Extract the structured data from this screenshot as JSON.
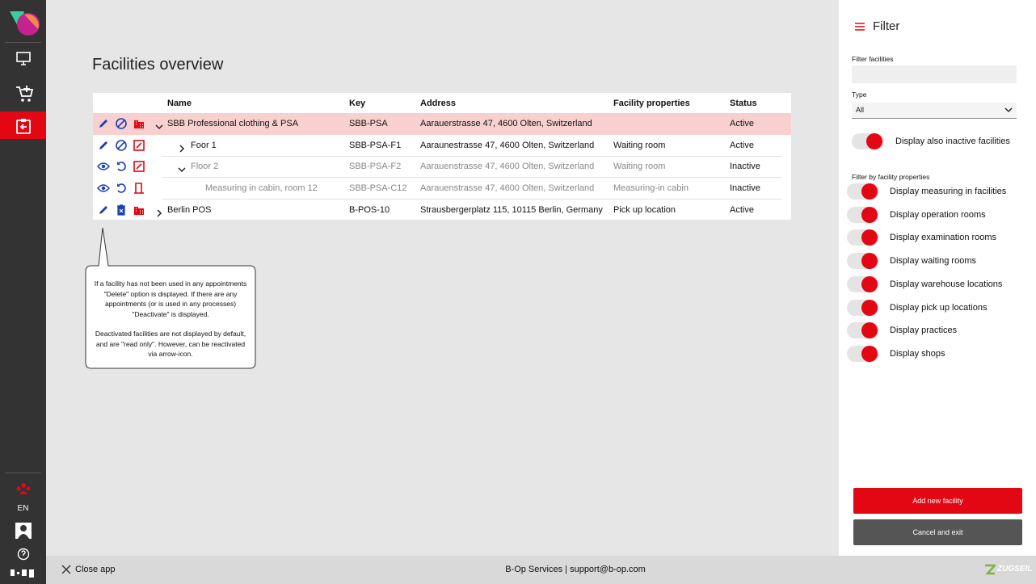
{
  "sidebar": {
    "language": "EN"
  },
  "page": {
    "title": "Facilities overview"
  },
  "table": {
    "headers": [
      "Name",
      "Key",
      "Address",
      "Facility properties",
      "Status"
    ],
    "rows": [
      {
        "name": "SBB Professional clothing & PSA",
        "key": "SBB-PSA",
        "address": "Aarauerstrasse 47, 4600 Olten, Switzerland",
        "status": "Active"
      },
      {
        "name": "Foor 1",
        "key": "SBB-PSA-F1",
        "address": "Aaraunestrasse 47, 4600 Olten, Switzerland",
        "properties": "Waiting room",
        "status": "Active"
      },
      {
        "name": "Floor 2",
        "key": "SBB-PSA-F2",
        "address": "Aarauenstrasse 47, 4600 Olten, Switzerland",
        "properties": "Waiting room",
        "status": "Inactive"
      },
      {
        "name": "Measuring in cabin, room 12",
        "key": "SBB-PSA-C12",
        "address": "Aarauenstrasse 47, 4600 Olten, Switzerland",
        "properties": "Measuring-in cabin",
        "status": "Inactive"
      },
      {
        "name": "Berlin POS",
        "key": "B-POS-10",
        "address": "Strausbergerplatz 115, 10115 Berlin, Germany",
        "properties": "Pick up location",
        "status": "Active"
      }
    ]
  },
  "tooltip": {
    "paragraphs": [
      "If a facility has not been used in any appointments \"Delete\" option is displayed. If there are any appointments (or is used in any processes) \"Deactivate\" is displayed.",
      "Deactivated facilities are not displayed by default, and are \"read only\". However, can be reactivated via arrow-icon."
    ]
  },
  "filter": {
    "title": "Filter",
    "search_label": "Filter facilities",
    "type_label": "Type",
    "type_value": "All",
    "inactive_toggle": "Display also inactive facilities",
    "properties_label": "Filter by facility properties",
    "property_toggles": [
      "Display measuring in facilities",
      "Display operation rooms",
      "Display examination rooms",
      "Display waiting rooms",
      "Display warehouse locations",
      "Display pick up locations",
      "Display practices",
      "Display shops"
    ],
    "add_button": "Add new facility",
    "cancel_button": "Cancel and exit"
  },
  "footer": {
    "close": "Close app",
    "center": "B-Op Services | support@b-op.com",
    "brand": "ZUGSEIL"
  }
}
